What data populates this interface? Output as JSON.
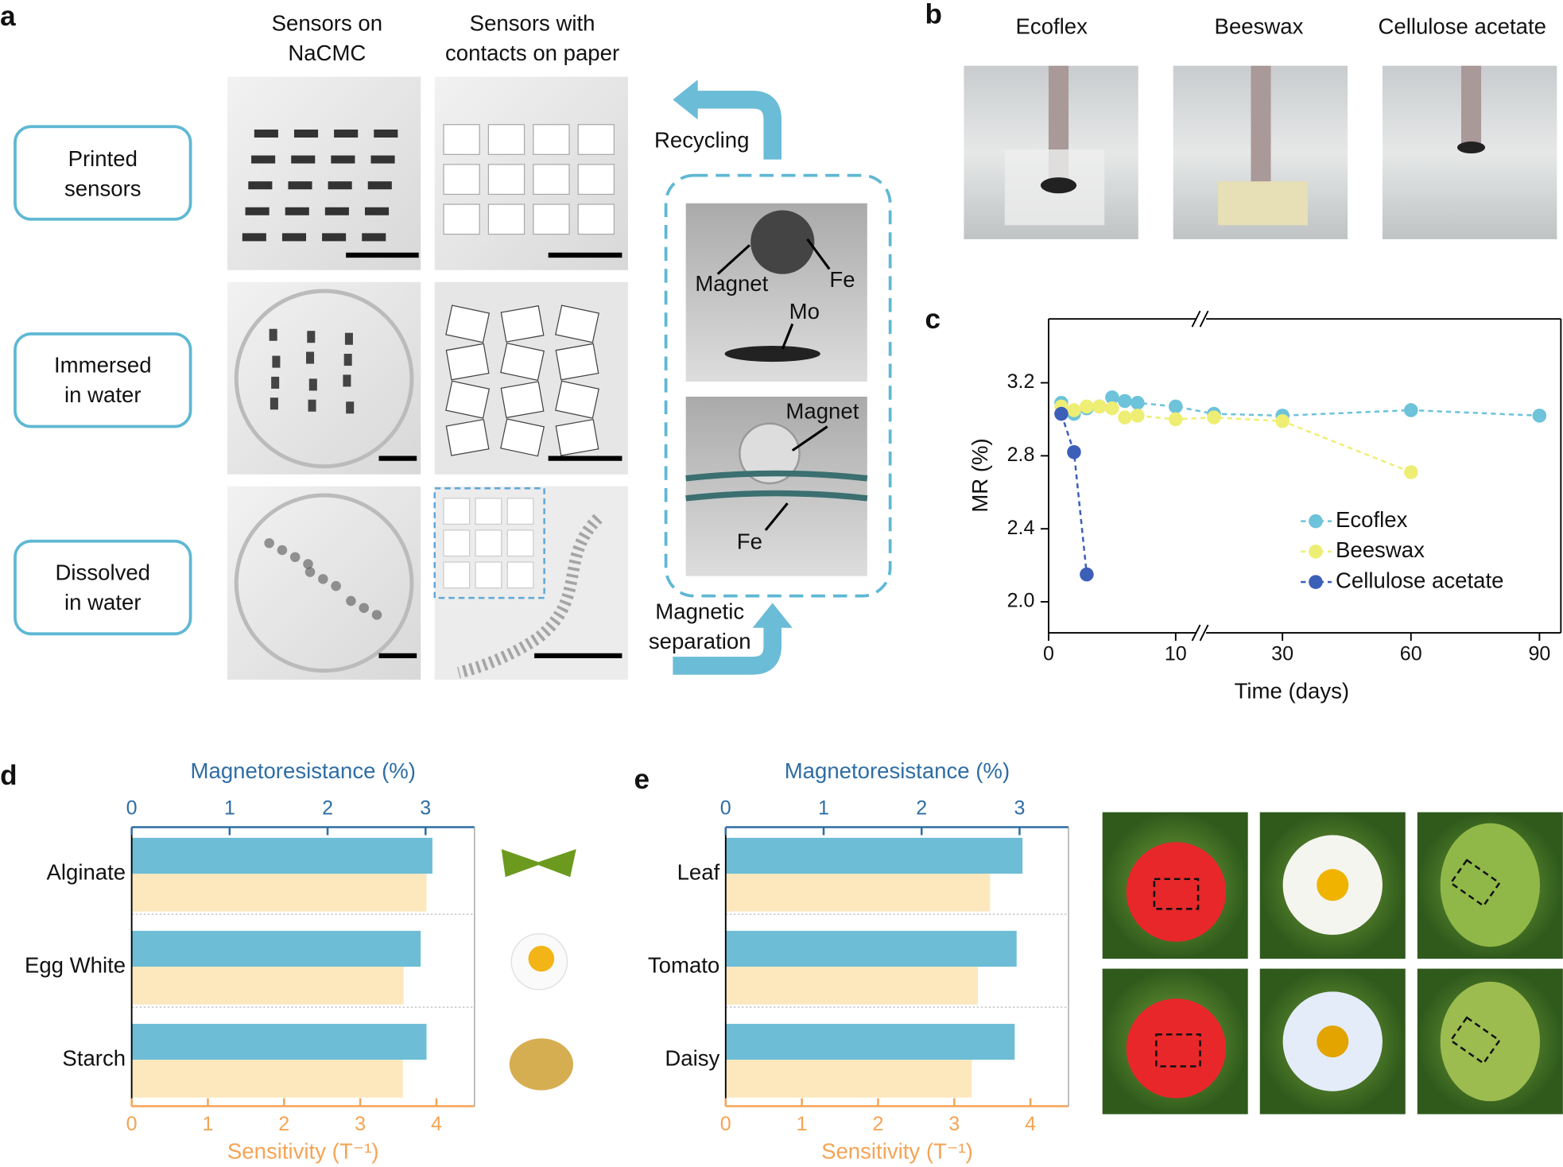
{
  "panel_labels": [
    "a",
    "b",
    "c",
    "d",
    "e"
  ],
  "panel_a": {
    "column_headers": [
      [
        "Sensors on",
        "NaCMC"
      ],
      [
        "Sensors with",
        "contacts on paper"
      ]
    ],
    "row_labels": [
      [
        "Printed",
        "sensors"
      ],
      [
        "Immersed",
        "in water"
      ],
      [
        "Dissolved",
        "in water"
      ]
    ],
    "recycling": "Recycling",
    "magnetic_separation": [
      "Magnetic",
      "separation"
    ],
    "photo_labels": [
      "Magnet",
      "Fe",
      "Mo",
      "Magnet",
      "Fe"
    ]
  },
  "panel_b": {
    "labels": [
      "Ecoflex",
      "Beeswax",
      "Cellulose acetate"
    ]
  },
  "chart_data": [
    {
      "type": "line",
      "x_label": "Time (days)",
      "y_label": "MR (%)",
      "xlim": [
        [
          0,
          12
        ],
        [
          11,
          95
        ]
      ],
      "xticks": [
        0,
        10,
        30,
        60,
        90
      ],
      "ylim": [
        1.83,
        3.55
      ],
      "yticks": [
        {
          "value": 2,
          "label": "2.0"
        },
        {
          "value": 2.4,
          "label": "2.4"
        },
        {
          "value": 2.8,
          "label": "2.8"
        },
        {
          "value": 3.2,
          "label": "3.2"
        }
      ],
      "legend": "right",
      "series": [
        {
          "name": "Ecoflex",
          "color": "#6cc3da",
          "x": [
            1,
            2,
            3,
            4,
            5,
            6,
            7,
            10,
            14,
            30,
            60,
            90
          ],
          "values": [
            3.09,
            3.03,
            3.06,
            3.07,
            3.12,
            3.1,
            3.09,
            3.07,
            3.03,
            3.02,
            3.05,
            3.02
          ]
        },
        {
          "name": "Beeswax",
          "color": "#eeee74",
          "x": [
            1,
            2,
            3,
            4,
            5,
            6,
            7,
            10,
            14,
            30,
            60
          ],
          "values": [
            3.07,
            3.05,
            3.07,
            3.07,
            3.06,
            3.01,
            3.02,
            3.0,
            3.01,
            2.99,
            2.71
          ]
        },
        {
          "name": "Cellulose acetate",
          "color": "#3c5fb8",
          "x": [
            1,
            2,
            3
          ],
          "values": [
            3.03,
            2.82,
            2.15
          ]
        }
      ]
    },
    {
      "type": "barh",
      "x_label": "Magnetoresistance (%)",
      "x2_label": "Sensitivity (T⁻¹)",
      "categories": [
        "Alginate",
        "Egg White",
        "Starch"
      ],
      "xlim": [
        0,
        3.5
      ],
      "xticks": [
        0,
        1,
        2,
        3
      ],
      "x2lim": [
        0,
        4.5
      ],
      "x2ticks": [
        0,
        1,
        2,
        3,
        4
      ],
      "series": [
        {
          "color": "#6dbdd6",
          "values": [
            3.07,
            2.95,
            3.01
          ],
          "axis": "x"
        },
        {
          "color": "#fde8be",
          "values": [
            3.87,
            3.57,
            3.56
          ],
          "axis": "x2"
        }
      ]
    },
    {
      "type": "barh",
      "x_label": "Magnetoresistance (%)",
      "x2_label": "Sensitivity (T⁻¹)",
      "categories": [
        "Leaf",
        "Tomato",
        "Daisy"
      ],
      "xlim": [
        0,
        3.5
      ],
      "xticks": [
        0,
        1,
        2,
        3
      ],
      "x2lim": [
        0,
        4.5
      ],
      "x2ticks": [
        0,
        1,
        2,
        3,
        4
      ],
      "series": [
        {
          "color": "#6dbdd6",
          "values": [
            3.03,
            2.97,
            2.95
          ],
          "axis": "x"
        },
        {
          "color": "#fde8be",
          "values": [
            3.47,
            3.31,
            3.23
          ],
          "axis": "x2"
        }
      ]
    }
  ]
}
